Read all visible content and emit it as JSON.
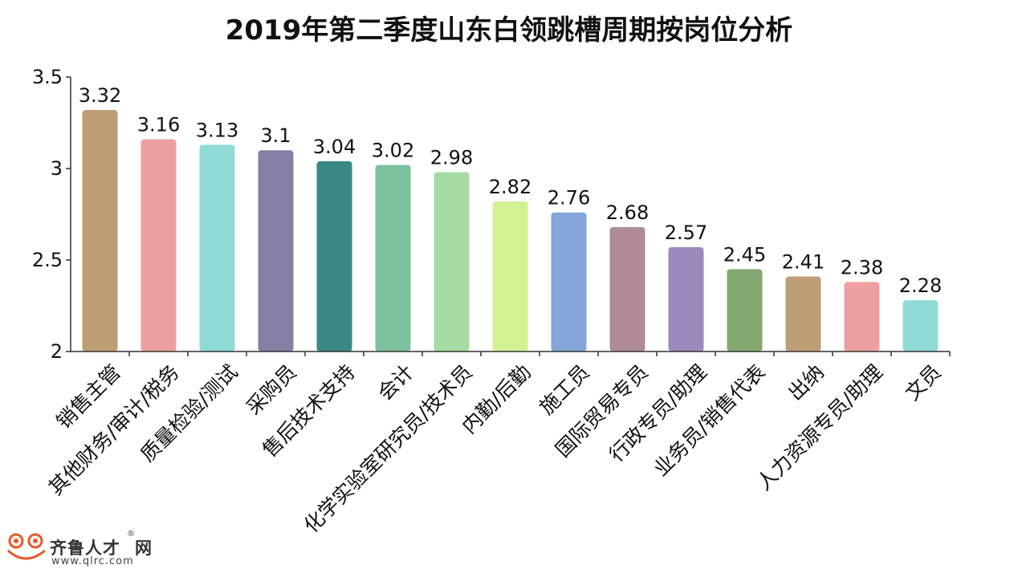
{
  "chart_data": {
    "type": "bar",
    "title": "2019年第二季度山东白领跳槽周期按岗位分析",
    "xlabel": "",
    "ylabel": "",
    "ylim": [
      2,
      3.5
    ],
    "yticks": [
      "2",
      "2.5",
      "3",
      "3.5"
    ],
    "grid": false,
    "legend": "none",
    "categories": [
      "销售主管",
      "其他财务/审计/税务",
      "质量检验/测试",
      "采购员",
      "售后技术支持",
      "会计",
      "化学实验室研究员/技术员",
      "内勤/后勤",
      "施工员",
      "国际贸易专员",
      "行政专员/助理",
      "业务员/销售代表",
      "出纳",
      "人力资源专员/助理",
      "文员"
    ],
    "values": [
      3.32,
      3.16,
      3.13,
      3.1,
      3.04,
      3.02,
      2.98,
      2.82,
      2.76,
      2.68,
      2.57,
      2.45,
      2.41,
      2.38,
      2.28
    ],
    "value_labels": [
      "3.32",
      "3.16",
      "3.13",
      "3.1",
      "3.04",
      "3.02",
      "2.98",
      "2.82",
      "2.76",
      "2.68",
      "2.57",
      "2.45",
      "2.41",
      "2.38",
      "2.28"
    ],
    "colors": [
      "#bd9e75",
      "#eda09f",
      "#8fdad5",
      "#8580a6",
      "#3a8886",
      "#7cc19d",
      "#a4dba2",
      "#d2f193",
      "#84a6db",
      "#b08a96",
      "#9b8abb",
      "#85a871",
      "#bd9e75",
      "#eda09f",
      "#8fdad5"
    ]
  },
  "watermark": {
    "brand": "齐鲁人才",
    "suffix": "网",
    "registered": "®",
    "url": "www.qlrc.com",
    "icon": "frog-logo-icon",
    "color": "#e8592b"
  }
}
